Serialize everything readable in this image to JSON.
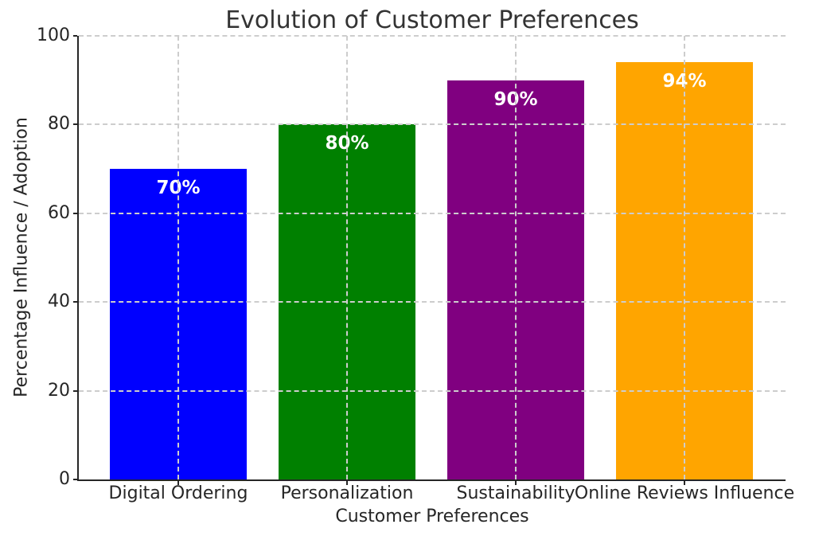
{
  "chart_data": {
    "type": "bar",
    "title": "Evolution of Customer Preferences",
    "xlabel": "Customer Preferences",
    "ylabel": "Percentage Influence / Adoption",
    "categories": [
      "Digital Ordering",
      "Personalization",
      "Sustainability",
      "Online Reviews Influence"
    ],
    "values": [
      70,
      80,
      90,
      94
    ],
    "bar_labels": [
      "70%",
      "80%",
      "90%",
      "94%"
    ],
    "bar_colors": [
      "#0000ff",
      "#008000",
      "#800080",
      "#ffa500"
    ],
    "bar_label_color": "#ffffff",
    "ylim": [
      0,
      100
    ],
    "yticks": [
      0,
      20,
      40,
      60,
      80,
      100
    ],
    "grid": "dashed, drawn over bars, horizontal and vertical at bar centers",
    "legend": "none"
  },
  "style_colors": {
    "text": "#262626",
    "title": "#333333",
    "grid": "#cdcdcd",
    "spine": "#262626",
    "background": "#ffffff"
  }
}
